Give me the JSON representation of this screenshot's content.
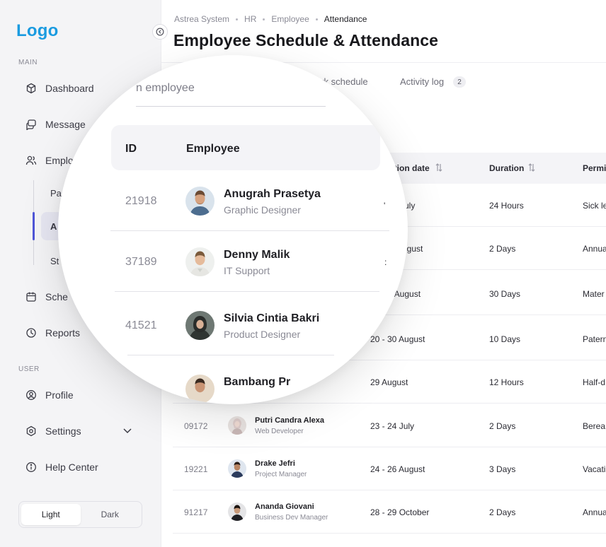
{
  "app": {
    "logo": "Logo"
  },
  "sidebar": {
    "main_label": "MAIN",
    "user_label": "USER",
    "items": [
      {
        "label": "Dashboard",
        "icon": "cube-icon"
      },
      {
        "label": "Message",
        "icon": "chat-icon"
      },
      {
        "label": "Emplo",
        "icon": "users-icon"
      },
      {
        "label": "Sche",
        "icon": "calendar-icon"
      },
      {
        "label": "Reports",
        "icon": "report-icon"
      }
    ],
    "sub_items": [
      "Pa",
      "A",
      "St"
    ],
    "user_items": [
      {
        "label": "Profile",
        "icon": "profile-icon"
      },
      {
        "label": "Settings",
        "icon": "settings-icon"
      },
      {
        "label": "Help Center",
        "icon": "info-icon"
      }
    ],
    "theme": {
      "light": "Light",
      "dark": "Dark"
    }
  },
  "breadcrumb": [
    "Astrea System",
    "HR",
    "Employee",
    "Attendance"
  ],
  "page_title": "Employee Schedule & Attendance",
  "tabs": {
    "work_schedule": "Vork schedule",
    "activity_log": "Activity log",
    "activity_count": "2"
  },
  "table": {
    "headers": {
      "date": "ation date",
      "duration": "Duration",
      "permission": "Permis"
    },
    "rows": [
      {
        "id": "",
        "name": "",
        "role": "",
        "date": "uly",
        "duration": "24 Hours",
        "permission": "Sick le"
      },
      {
        "id": "",
        "name": "",
        "role": "",
        "date": "ugust",
        "duration": "2 Days",
        "permission": "Annua"
      },
      {
        "id": "",
        "name": "",
        "role": "",
        "date": ") August",
        "duration": "30 Days",
        "permission": "Mater"
      },
      {
        "id": "",
        "name": "",
        "role": "",
        "date": "20 - 30 August",
        "duration": "10 Days",
        "permission": "Patern"
      },
      {
        "id": "",
        "name": "",
        "role": "",
        "date": "29 August",
        "duration": "12 Hours",
        "permission": "Half-d"
      },
      {
        "id": "09172",
        "name": "Putri Candra Alexa",
        "role": "Web Developer",
        "date": "23 - 24 July",
        "duration": "2 Days",
        "permission": "Berea"
      },
      {
        "id": "19221",
        "name": "Drake Jefri",
        "role": "Project Manager",
        "date": "24 - 26 August",
        "duration": "3 Days",
        "permission": "Vacati"
      },
      {
        "id": "91217",
        "name": "Ananda Giovani",
        "role": "Business Dev Manager",
        "date": "28 - 29 October",
        "duration": "2 Days",
        "permission": "Annua"
      }
    ]
  },
  "magnifier": {
    "search_placeholder": "n employee",
    "header_id": "ID",
    "header_employee": "Employee",
    "rows": [
      {
        "id": "21918",
        "name": "Anugrah Prasetya",
        "role": "Graphic Designer"
      },
      {
        "id": "37189",
        "name": "Denny Malik",
        "role": "IT Support"
      },
      {
        "id": "41521",
        "name": "Silvia Cintia Bakri",
        "role": "Product Designer"
      },
      {
        "id": "",
        "name": "Bambang Pr",
        "role": ""
      }
    ]
  },
  "colors": {
    "logo": "#1a9be0",
    "accent": "#4f56d8",
    "sidebar_bg": "#f4f4f6"
  }
}
